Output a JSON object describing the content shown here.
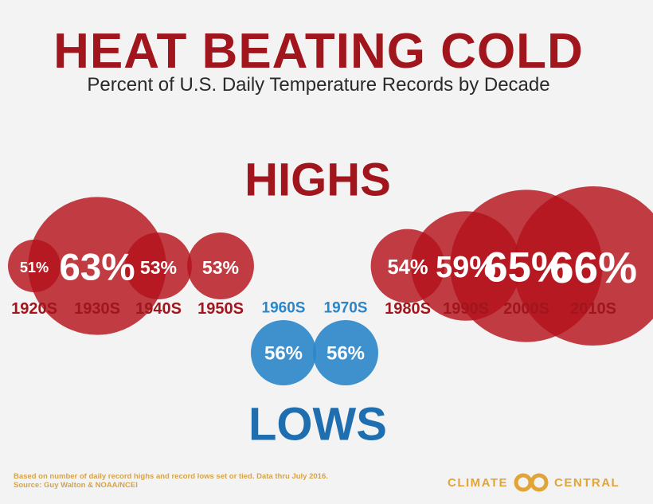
{
  "title": "HEAT BEATING COLD",
  "subtitle": "Percent of U.S. Daily Temperature Records by Decade",
  "colors": {
    "high": "#b5121b",
    "low": "#2b86c9",
    "title": "#a0161c",
    "low_label": "#1f6fb0",
    "brand": "#e0a437"
  },
  "chart_data": {
    "type": "bubble",
    "groups": [
      {
        "label": "HIGHS",
        "items": [
          {
            "decade": "1920S",
            "value": 51,
            "label": "51%"
          },
          {
            "decade": "1930S",
            "value": 63,
            "label": "63%"
          },
          {
            "decade": "1940S",
            "value": 53,
            "label": "53%"
          },
          {
            "decade": "1950S",
            "value": 53,
            "label": "53%"
          },
          {
            "decade": "1980S",
            "value": 54,
            "label": "54%"
          },
          {
            "decade": "1990S",
            "value": 59,
            "label": "59%"
          },
          {
            "decade": "2000S",
            "value": 65,
            "label": "65%"
          },
          {
            "decade": "2010S",
            "value": 66,
            "label": "66%"
          }
        ]
      },
      {
        "label": "LOWS",
        "items": [
          {
            "decade": "1960S",
            "value": 56,
            "label": "56%"
          },
          {
            "decade": "1970S",
            "value": 56,
            "label": "56%"
          }
        ]
      }
    ]
  },
  "footnote": {
    "line1": "Based on number of daily record highs and record lows set or tied. Data thru July 2016.",
    "line2": "Source: Guy Walton & NOAA/NCEI"
  },
  "brand": {
    "left": "CLIMATE",
    "right": "CENTRAL"
  }
}
